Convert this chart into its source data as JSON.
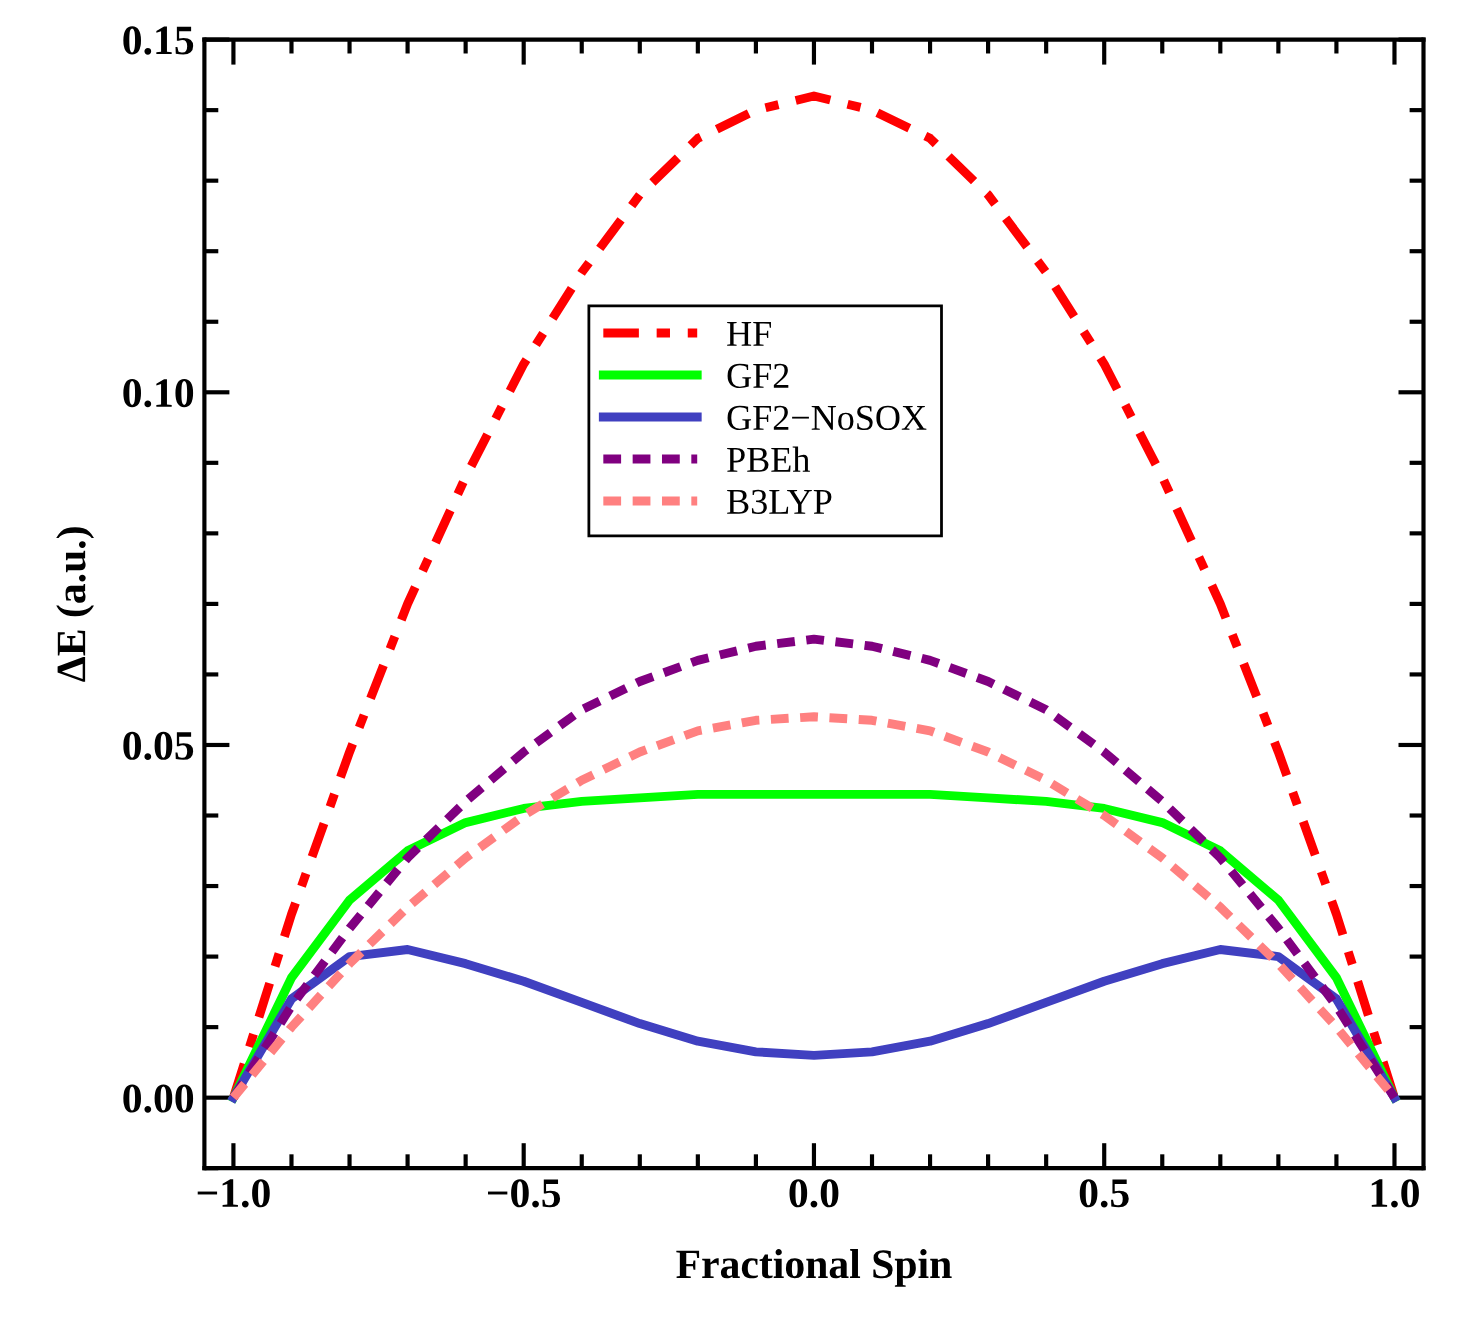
{
  "chart_data": {
    "type": "line",
    "xlabel": "Fractional Spin",
    "ylabel": "ΔE (a.u.)",
    "x": [
      -1.0,
      -0.9,
      -0.8,
      -0.7,
      -0.6,
      -0.5,
      -0.4,
      -0.3,
      -0.2,
      -0.1,
      0.0,
      0.1,
      0.2,
      0.3,
      0.4,
      0.5,
      0.6,
      0.7,
      0.8,
      0.9,
      1.0
    ],
    "series": [
      {
        "name": "HF",
        "color": "#ff0000",
        "line_style": "dashed",
        "values": [
          0,
          0.026,
          0.049,
          0.07,
          0.088,
          0.104,
          0.117,
          0.128,
          0.136,
          0.14,
          0.142,
          0.14,
          0.136,
          0.128,
          0.117,
          0.104,
          0.088,
          0.07,
          0.049,
          0.026,
          0
        ]
      },
      {
        "name": "GF2",
        "color": "#00ff00",
        "line_style": "solid",
        "values": [
          0,
          0.017,
          0.028,
          0.035,
          0.039,
          0.041,
          0.042,
          0.0425,
          0.043,
          0.043,
          0.043,
          0.043,
          0.043,
          0.0425,
          0.042,
          0.041,
          0.039,
          0.035,
          0.028,
          0.017,
          0
        ]
      },
      {
        "name": "GF2−NoSOX",
        "color": "#4040c0",
        "line_style": "solid",
        "values": [
          0,
          0.014,
          0.02,
          0.021,
          0.019,
          0.0165,
          0.0135,
          0.0105,
          0.008,
          0.0065,
          0.006,
          0.0065,
          0.008,
          0.0105,
          0.0135,
          0.0165,
          0.019,
          0.021,
          0.02,
          0.014,
          0
        ]
      },
      {
        "name": "PBEh",
        "color": "#800080",
        "line_style": "dotted",
        "values": [
          0,
          0.013,
          0.024,
          0.034,
          0.042,
          0.049,
          0.055,
          0.059,
          0.062,
          0.064,
          0.065,
          0.064,
          0.062,
          0.059,
          0.055,
          0.049,
          0.042,
          0.034,
          0.024,
          0.013,
          0
        ]
      },
      {
        "name": "B3LYP",
        "color": "#ff8080",
        "line_style": "dotted",
        "values": [
          0,
          0.01,
          0.019,
          0.027,
          0.034,
          0.04,
          0.045,
          0.049,
          0.052,
          0.0535,
          0.054,
          0.0535,
          0.052,
          0.049,
          0.045,
          0.04,
          0.034,
          0.027,
          0.019,
          0.01,
          0
        ]
      }
    ],
    "xlim": [
      -1.05,
      1.05
    ],
    "ylim": [
      -0.01,
      0.15
    ],
    "xticks": [
      {
        "value": -1.0,
        "label": "−1.0"
      },
      {
        "value": -0.5,
        "label": "−0.5"
      },
      {
        "value": 0.0,
        "label": "0.0"
      },
      {
        "value": 0.5,
        "label": "0.5"
      },
      {
        "value": 1.0,
        "label": "1.0"
      }
    ],
    "yticks": [
      {
        "value": 0.0,
        "label": "0.00"
      },
      {
        "value": 0.05,
        "label": "0.05"
      },
      {
        "value": 0.1,
        "label": "0.10"
      },
      {
        "value": 0.15,
        "label": "0.15"
      }
    ],
    "legend": "top",
    "grid": false,
    "marker": "none"
  }
}
